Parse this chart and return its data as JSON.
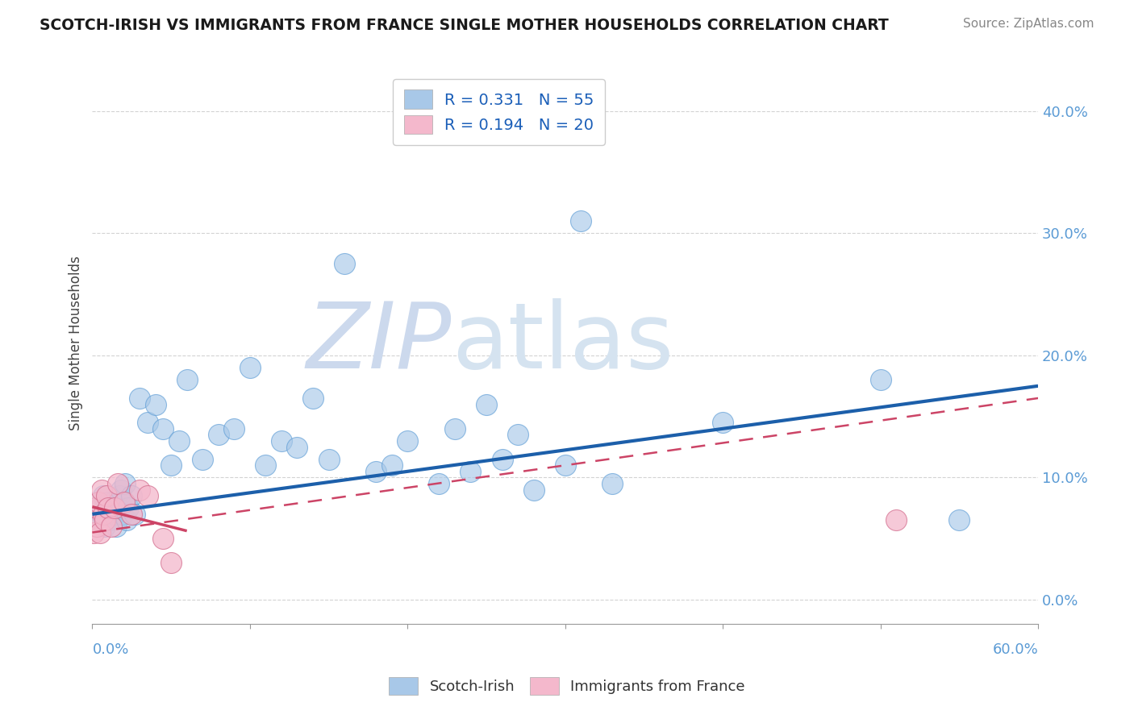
{
  "title": "SCOTCH-IRISH VS IMMIGRANTS FROM FRANCE SINGLE MOTHER HOUSEHOLDS CORRELATION CHART",
  "source": "Source: ZipAtlas.com",
  "ylabel": "Single Mother Households",
  "ytick_vals": [
    0,
    10,
    20,
    30,
    40
  ],
  "ytick_labels": [
    "0.0%",
    "10.0%",
    "20.0%",
    "30.0%",
    "40.0%"
  ],
  "xlim": [
    0,
    60
  ],
  "ylim": [
    -2,
    44
  ],
  "series1_label": "Scotch-Irish",
  "series2_label": "Immigrants from France",
  "R1": "0.331",
  "N1": "55",
  "R2": "0.194",
  "N2": "20",
  "color1": "#a8c8e8",
  "color2": "#f4b8cc",
  "edge1": "#5b9bd5",
  "edge2": "#d47090",
  "line1_color": "#1c5faa",
  "line2_color": "#cc4466",
  "watermark_zip": "ZIP",
  "watermark_atlas": "atlas",
  "watermark_color": "#dde8f5",
  "background_color": "#ffffff",
  "scotch_irish_x": [
    0.3,
    0.5,
    0.6,
    0.7,
    0.8,
    0.9,
    1.0,
    1.1,
    1.2,
    1.3,
    1.4,
    1.5,
    1.6,
    1.7,
    1.8,
    1.9,
    2.0,
    2.1,
    2.2,
    2.3,
    2.5,
    2.7,
    3.0,
    3.5,
    4.0,
    4.5,
    5.0,
    5.5,
    6.0,
    7.0,
    8.0,
    9.0,
    10.0,
    11.0,
    12.0,
    13.0,
    14.0,
    15.0,
    16.0,
    18.0,
    19.0,
    20.0,
    22.0,
    23.0,
    24.0,
    25.0,
    26.0,
    27.0,
    28.0,
    30.0,
    31.0,
    33.0,
    40.0,
    50.0,
    55.0
  ],
  "scotch_irish_y": [
    6.5,
    7.5,
    7.0,
    8.5,
    6.0,
    7.0,
    8.0,
    6.5,
    7.5,
    8.0,
    7.0,
    6.0,
    7.5,
    8.5,
    9.0,
    7.0,
    8.0,
    9.5,
    6.5,
    7.5,
    8.5,
    7.0,
    16.5,
    14.5,
    16.0,
    14.0,
    11.0,
    13.0,
    18.0,
    11.5,
    13.5,
    14.0,
    19.0,
    11.0,
    13.0,
    12.5,
    16.5,
    11.5,
    27.5,
    10.5,
    11.0,
    13.0,
    9.5,
    14.0,
    10.5,
    16.0,
    11.5,
    13.5,
    9.0,
    11.0,
    31.0,
    9.5,
    14.5,
    18.0,
    6.5
  ],
  "france_x": [
    0.1,
    0.2,
    0.3,
    0.4,
    0.5,
    0.6,
    0.7,
    0.8,
    0.9,
    1.0,
    1.2,
    1.4,
    1.6,
    2.0,
    2.5,
    3.0,
    3.5,
    4.5,
    5.0,
    51.0
  ],
  "france_y": [
    5.5,
    7.5,
    6.0,
    8.0,
    5.5,
    9.0,
    7.0,
    6.5,
    8.5,
    7.5,
    6.0,
    7.5,
    9.5,
    8.0,
    7.0,
    9.0,
    8.5,
    5.0,
    3.0,
    6.5
  ],
  "line1_x0": 0,
  "line1_y0": 7.0,
  "line1_x1": 60,
  "line1_y1": 17.5,
  "line2_x0": 0,
  "line2_y0": 5.5,
  "line2_x1": 60,
  "line2_y1": 16.5
}
